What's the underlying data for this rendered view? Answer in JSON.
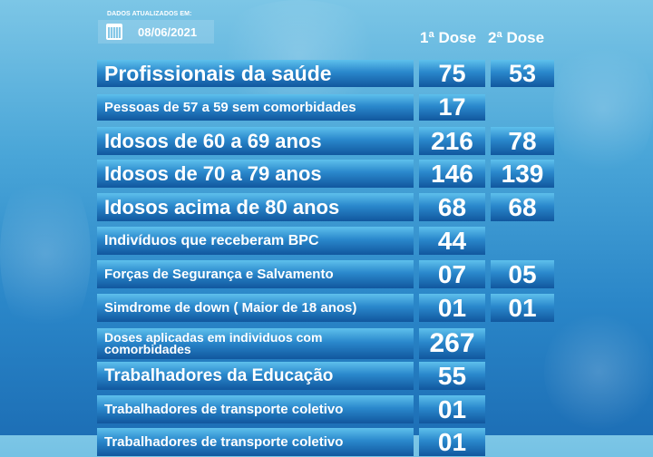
{
  "header": {
    "updated_label": "DADOS ATUALIZADOS EM:",
    "date": "08/06/2021",
    "calendar_icon": "calendar-icon",
    "dose1_label": "1ª Dose",
    "dose2_label": "2ª Dose"
  },
  "colors": {
    "bar_top": "#5ec0ec",
    "bar_bottom": "#11579e",
    "text": "#ffffff"
  },
  "rows": [
    {
      "label": "Profissionais da saúde",
      "dose1": "75",
      "dose2": "53"
    },
    {
      "label": "Pessoas de 57 a 59 sem comorbidades",
      "dose1": "17",
      "dose2": ""
    },
    {
      "label": "Idosos de 60 a 69 anos",
      "dose1": "216",
      "dose2": "78"
    },
    {
      "label": "Idosos de 70 a 79 anos",
      "dose1": "146",
      "dose2": "139"
    },
    {
      "label": "Idosos acima de  80 anos",
      "dose1": "68",
      "dose2": "68"
    },
    {
      "label": "Indivíduos que receberam BPC",
      "dose1": "44",
      "dose2": ""
    },
    {
      "label": "Forças de Segurança e Salvamento",
      "dose1": "07",
      "dose2": "05"
    },
    {
      "label": "Simdrome de down ( Maior de 18 anos)",
      "dose1": "01",
      "dose2": "01"
    },
    {
      "label": "Doses aplicadas em individuos com comorbidades",
      "dose1": "267",
      "dose2": ""
    },
    {
      "label": "Trabalhadores da Educação",
      "dose1": "55",
      "dose2": ""
    },
    {
      "label": "Trabalhadores de transporte coletivo",
      "dose1": "01",
      "dose2": ""
    },
    {
      "label": "Trabalhadores de transporte coletivo",
      "dose1": "01",
      "dose2": ""
    }
  ]
}
